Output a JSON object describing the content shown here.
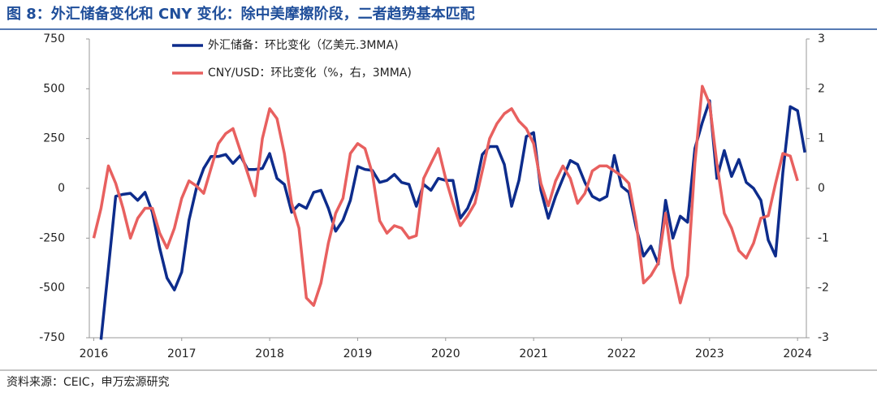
{
  "chart_data": {
    "type": "line",
    "title": "图 8：外汇储备变化和 CNY 变化：除中美摩擦阶段，二者趋势基本匹配",
    "source": "资料来源：CEIC，申万宏源研究",
    "legend": "upper left",
    "grid": false,
    "x": [
      2016,
      2016.083,
      2016.167,
      2016.25,
      2016.333,
      2016.417,
      2016.5,
      2016.583,
      2016.667,
      2016.75,
      2016.833,
      2016.917,
      2017,
      2017.083,
      2017.167,
      2017.25,
      2017.333,
      2017.417,
      2017.5,
      2017.583,
      2017.667,
      2017.75,
      2017.833,
      2017.917,
      2018,
      2018.083,
      2018.167,
      2018.25,
      2018.333,
      2018.417,
      2018.5,
      2018.583,
      2018.667,
      2018.75,
      2018.833,
      2018.917,
      2019,
      2019.083,
      2019.167,
      2019.25,
      2019.333,
      2019.417,
      2019.5,
      2019.583,
      2019.667,
      2019.75,
      2019.833,
      2019.917,
      2020,
      2020.083,
      2020.167,
      2020.25,
      2020.333,
      2020.417,
      2020.5,
      2020.583,
      2020.667,
      2020.75,
      2020.833,
      2020.917,
      2021,
      2021.083,
      2021.167,
      2021.25,
      2021.333,
      2021.417,
      2021.5,
      2021.583,
      2021.667,
      2021.75,
      2021.833,
      2021.917,
      2022,
      2022.083,
      2022.167,
      2022.25,
      2022.333,
      2022.417,
      2022.5,
      2022.583,
      2022.667,
      2022.75,
      2022.833,
      2022.917,
      2023,
      2023.083,
      2023.167,
      2023.25,
      2023.333,
      2023.417,
      2023.5,
      2023.583,
      2023.667,
      2023.75,
      2023.833,
      2023.917,
      2024,
      2024.083
    ],
    "xlim": [
      2015.95,
      2024.1
    ],
    "xticks": [
      2016,
      2017,
      2018,
      2019,
      2020,
      2021,
      2022,
      2023,
      2024
    ],
    "ylim": [
      -750,
      750
    ],
    "yticks": [
      -750,
      -500,
      -250,
      0,
      250,
      500,
      750
    ],
    "y2lim": [
      -3,
      3
    ],
    "y2ticks": [
      -3,
      -2,
      -1,
      0,
      1,
      2,
      3
    ],
    "series": [
      {
        "name": "外汇储备：环比变化（亿美元.3MMA)",
        "color": "#0d2c8c",
        "axis": "y",
        "values": [
          null,
          -760,
          -400,
          -40,
          -30,
          -25,
          -60,
          -20,
          -120,
          -300,
          -450,
          -510,
          -420,
          -160,
          0,
          100,
          160,
          160,
          170,
          125,
          165,
          95,
          95,
          100,
          175,
          50,
          20,
          -120,
          -80,
          -100,
          -20,
          -10,
          -100,
          -215,
          -160,
          -60,
          110,
          95,
          90,
          30,
          40,
          70,
          30,
          20,
          -90,
          20,
          -10,
          50,
          40,
          40,
          -150,
          -100,
          -10,
          170,
          210,
          210,
          120,
          -90,
          40,
          260,
          280,
          -10,
          -150,
          -40,
          50,
          140,
          120,
          30,
          -40,
          -60,
          -40,
          165,
          10,
          -20,
          -200,
          -340,
          -290,
          -380,
          -60,
          -250,
          -140,
          -170,
          200,
          330,
          440,
          50,
          190,
          60,
          145,
          30,
          0,
          -60,
          -260,
          -340,
          80,
          410,
          390,
          180
        ]
      },
      {
        "name": "CNY/USD：环比变化（%，右，3MMA)",
        "color": "#e8605f",
        "axis": "y2",
        "values": [
          -1.0,
          -0.4,
          0.45,
          0.1,
          -0.4,
          -1.0,
          -0.6,
          -0.4,
          -0.4,
          -0.9,
          -1.2,
          -0.8,
          -0.2,
          0.15,
          0.05,
          -0.1,
          0.4,
          0.9,
          1.1,
          1.2,
          0.75,
          0.3,
          -0.15,
          1.0,
          1.6,
          1.4,
          0.7,
          -0.3,
          -0.8,
          -2.2,
          -2.35,
          -1.9,
          -1.1,
          -0.5,
          -0.2,
          0.7,
          0.9,
          0.8,
          0.3,
          -0.65,
          -0.9,
          -0.75,
          -0.8,
          -1.0,
          -0.95,
          0.2,
          0.5,
          0.8,
          0.2,
          -0.3,
          -0.75,
          -0.55,
          -0.3,
          0.35,
          1.0,
          1.3,
          1.5,
          1.6,
          1.35,
          1.2,
          0.9,
          0.1,
          -0.35,
          0.15,
          0.45,
          0.2,
          -0.3,
          -0.1,
          0.35,
          0.45,
          0.45,
          0.35,
          0.25,
          0.1,
          -0.7,
          -1.9,
          -1.75,
          -1.5,
          -0.5,
          -1.6,
          -2.3,
          -1.75,
          0.5,
          2.05,
          1.7,
          0.5,
          -0.5,
          -0.8,
          -1.25,
          -1.4,
          -1.1,
          -0.6,
          -0.55,
          0.1,
          0.7,
          0.65,
          0.15,
          null
        ]
      }
    ]
  }
}
